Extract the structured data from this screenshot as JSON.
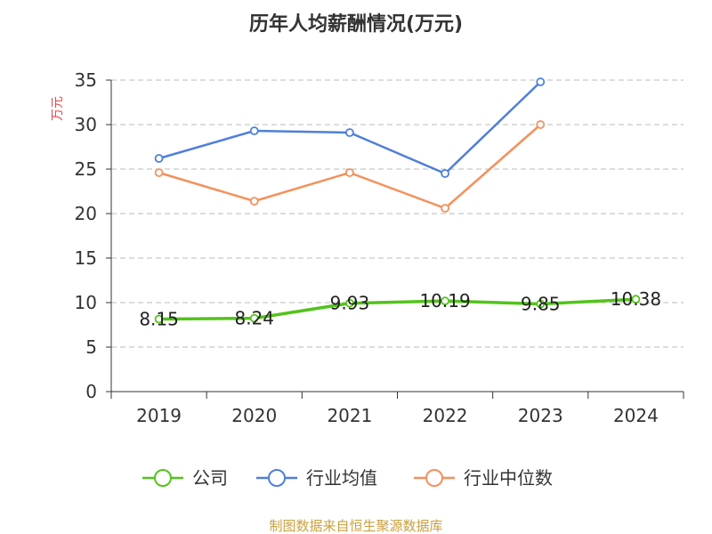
{
  "chart_data": {
    "type": "line",
    "title": "历年人均薪酬情况(万元)",
    "ylabel": "万元",
    "xlabel": "",
    "categories": [
      "2019",
      "2020",
      "2021",
      "2022",
      "2023",
      "2024"
    ],
    "ylim": [
      0,
      35
    ],
    "yticks": [
      0,
      5,
      10,
      15,
      20,
      25,
      30,
      35
    ],
    "grid": true,
    "legend_position": "bottom",
    "series": [
      {
        "name": "公司",
        "color": "#52c41a",
        "values": [
          8.15,
          8.24,
          9.93,
          10.19,
          9.85,
          10.38
        ],
        "labels": [
          "8.15",
          "8.24",
          "9.93",
          "10.19",
          "9.85",
          "10.38"
        ]
      },
      {
        "name": "行业均值",
        "color": "#4f7fdb",
        "values": [
          26.2,
          29.3,
          29.1,
          24.5,
          34.8,
          null
        ]
      },
      {
        "name": "行业中位数",
        "color": "#f5905a",
        "values": [
          24.6,
          21.4,
          24.6,
          20.6,
          30.0,
          null
        ]
      }
    ]
  },
  "footer": "制图数据来自恒生聚源数据库"
}
